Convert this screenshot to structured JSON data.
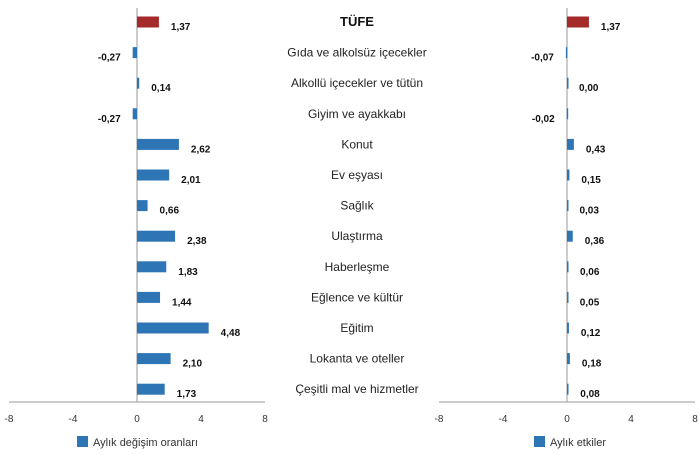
{
  "chart_data": [
    {
      "type": "bar",
      "orientation": "horizontal",
      "categories": [
        "TÜFE",
        "Gıda ve alkolsüz içecekler",
        "Alkollü içecekler ve tütün",
        "Giyim ve ayakkabı",
        "Konut",
        "Ev eşyası",
        "Sağlık",
        "Ulaştırma",
        "Haberleşme",
        "Eğlence ve kültür",
        "Eğitim",
        "Lokanta ve oteller",
        "Çeşitli mal ve hizmetler"
      ],
      "series": [
        {
          "name": "Aylık değişim oranları",
          "values": [
            1.37,
            -0.27,
            0.14,
            -0.27,
            2.62,
            2.01,
            0.66,
            2.38,
            1.83,
            1.44,
            4.48,
            2.1,
            1.73
          ],
          "labels": [
            "1,37",
            "-0,27",
            "0,14",
            "-0,27",
            "2,62",
            "2,01",
            "0,66",
            "2,38",
            "1,83",
            "1,44",
            "4,48",
            "2,10",
            "1,73"
          ]
        }
      ],
      "highlight_index": 0,
      "xlim": [
        -8,
        8
      ],
      "xticks": [
        "-8",
        "-4",
        "0",
        "4",
        "8"
      ],
      "legend": "bottom-left"
    },
    {
      "type": "bar",
      "orientation": "horizontal",
      "categories": [
        "TÜFE",
        "Gıda ve alkolsüz içecekler",
        "Alkollü içecekler ve tütün",
        "Giyim ve ayakkabı",
        "Konut",
        "Ev eşyası",
        "Sağlık",
        "Ulaştırma",
        "Haberleşme",
        "Eğlence ve kültür",
        "Eğitim",
        "Lokanta ve oteller",
        "Çeşitli mal ve hizmetler"
      ],
      "series": [
        {
          "name": "Aylık etkiler",
          "values": [
            1.37,
            -0.07,
            0.0,
            -0.02,
            0.43,
            0.15,
            0.03,
            0.36,
            0.06,
            0.05,
            0.12,
            0.18,
            0.08
          ],
          "labels": [
            "1,37",
            "-0,07",
            "0,00",
            "-0,02",
            "0,43",
            "0,15",
            "0,03",
            "0,36",
            "0,06",
            "0,05",
            "0,12",
            "0,18",
            "0,08"
          ]
        }
      ],
      "highlight_index": 0,
      "xlim": [
        -8,
        8
      ],
      "xticks": [
        "-8",
        "-4",
        "0",
        "4",
        "8"
      ],
      "legend": "bottom-left"
    }
  ],
  "colors": {
    "bar": "#2e75b6",
    "highlight": "#a52a2a",
    "axis": "#9a9a9a"
  }
}
